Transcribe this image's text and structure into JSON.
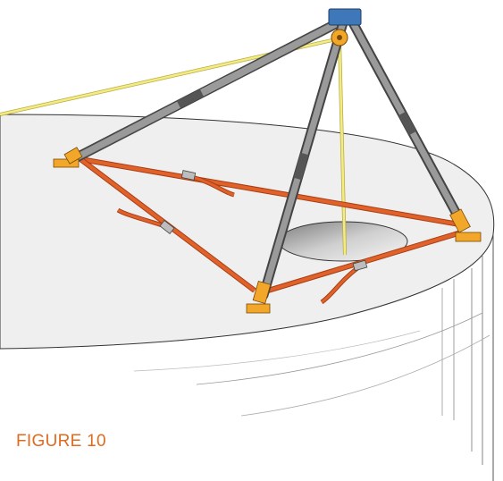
{
  "caption": "FIGURE 10",
  "colors": {
    "caption": "#e06a1f",
    "strap": "#e0622a",
    "strap_dark": "#a83e14",
    "leg": "#8e8e8e",
    "leg_dark": "#555555",
    "foot": "#f2a72a",
    "head": "#3f78b8",
    "rope": "#f3ea8a",
    "tank_top": "#efefef",
    "hole": "#9a9a9a"
  },
  "icons": [
    "tripod",
    "winch-pulley",
    "lifeline-rope",
    "manhole-opening",
    "tank-roof",
    "tie-down-straps",
    "leg-feet"
  ]
}
